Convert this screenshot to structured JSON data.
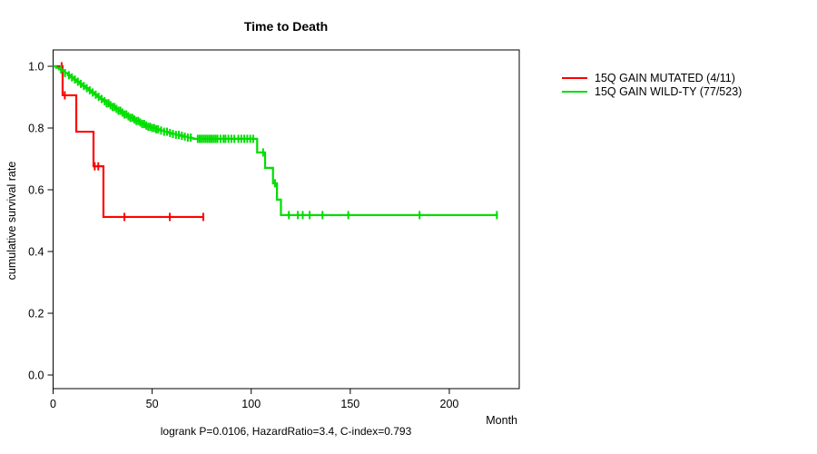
{
  "chart_data": {
    "type": "line",
    "subtype": "kaplan-meier-step",
    "title": "Time to Death",
    "xlabel": "Month",
    "ylabel": "cumulative survival rate",
    "caption": "logrank P=0.0106, HazardRatio=3.4, C-index=0.793",
    "xlim": [
      0,
      235.3
    ],
    "ylim": [
      0.0,
      1.0
    ],
    "xticks": [
      "0",
      "50",
      "100",
      "150",
      "200"
    ],
    "xtick_values": [
      0,
      50,
      100,
      150,
      200
    ],
    "yticks": [
      "0.0",
      "0.2",
      "0.4",
      "0.6",
      "0.8",
      "1.0"
    ],
    "ytick_values": [
      0,
      0.2,
      0.4,
      0.6,
      0.8,
      1.0
    ],
    "grid": false,
    "legend_position": "right-outside",
    "series": [
      {
        "name": "15Q GAIN MUTATED (4/11)",
        "color": "#ff0000",
        "events_total": "4/11",
        "steps": [
          [
            0,
            1.0
          ],
          [
            4.8,
            0.906
          ],
          [
            11.7,
            0.788
          ],
          [
            20.4,
            0.676
          ],
          [
            25.4,
            0.512
          ]
        ],
        "end_month": 76.3,
        "censor_months": [
          4.3,
          5.9,
          21.0,
          22.8,
          36.0,
          58.9,
          75.8
        ]
      },
      {
        "name": "15Q GAIN WILD-TY (77/523)",
        "color": "#00dd00",
        "events_total": "77/523",
        "steps": [
          [
            0,
            1.0
          ],
          [
            1.5,
            0.995
          ],
          [
            3,
            0.99
          ],
          [
            4.5,
            0.984
          ],
          [
            6,
            0.978
          ],
          [
            7.5,
            0.971
          ],
          [
            9,
            0.964
          ],
          [
            10.5,
            0.957
          ],
          [
            12,
            0.95
          ],
          [
            13.5,
            0.943
          ],
          [
            15,
            0.936
          ],
          [
            16.5,
            0.929
          ],
          [
            18,
            0.922
          ],
          [
            19.5,
            0.915
          ],
          [
            21,
            0.908
          ],
          [
            22.5,
            0.901
          ],
          [
            24,
            0.894
          ],
          [
            25.5,
            0.887
          ],
          [
            27,
            0.88
          ],
          [
            28.5,
            0.874
          ],
          [
            30,
            0.868
          ],
          [
            31.5,
            0.862
          ],
          [
            33,
            0.856
          ],
          [
            34.5,
            0.85
          ],
          [
            36,
            0.844
          ],
          [
            37.5,
            0.838
          ],
          [
            39,
            0.833
          ],
          [
            40.5,
            0.828
          ],
          [
            42,
            0.823
          ],
          [
            43.5,
            0.818
          ],
          [
            45,
            0.813
          ],
          [
            46.5,
            0.808
          ],
          [
            48,
            0.804
          ],
          [
            50,
            0.8
          ],
          [
            52,
            0.796
          ],
          [
            54,
            0.792
          ],
          [
            56,
            0.788
          ],
          [
            58,
            0.784
          ],
          [
            60,
            0.781
          ],
          [
            62,
            0.778
          ],
          [
            64,
            0.775
          ],
          [
            66,
            0.772
          ],
          [
            68,
            0.769
          ],
          [
            70,
            0.767
          ],
          [
            71,
            0.765
          ],
          [
            103,
            0.721
          ],
          [
            107,
            0.671
          ],
          [
            111,
            0.621
          ],
          [
            113,
            0.568
          ],
          [
            115,
            0.518
          ]
        ],
        "end_month": 224.5,
        "censor_months": [
          4,
          6,
          8,
          9.5,
          11,
          12.5,
          14,
          15.5,
          17,
          18.5,
          20,
          21.5,
          23,
          24.5,
          26,
          27,
          28,
          29,
          30,
          31,
          32,
          33,
          34,
          35,
          36,
          37,
          38,
          39,
          40,
          41,
          42,
          43,
          44,
          45,
          46,
          47,
          48,
          49,
          50,
          51,
          52,
          53,
          54.5,
          56,
          57.5,
          59,
          60.5,
          62,
          63.5,
          65,
          66.5,
          68,
          69.5,
          73,
          74,
          75,
          76,
          77,
          78,
          79,
          80,
          81,
          82,
          83,
          84.5,
          86,
          87,
          88.5,
          90,
          91.5,
          93.5,
          95,
          96.5,
          98,
          99.5,
          101,
          106,
          112,
          119,
          123.5,
          126,
          129.5,
          136,
          149,
          185,
          224
        ]
      }
    ]
  }
}
